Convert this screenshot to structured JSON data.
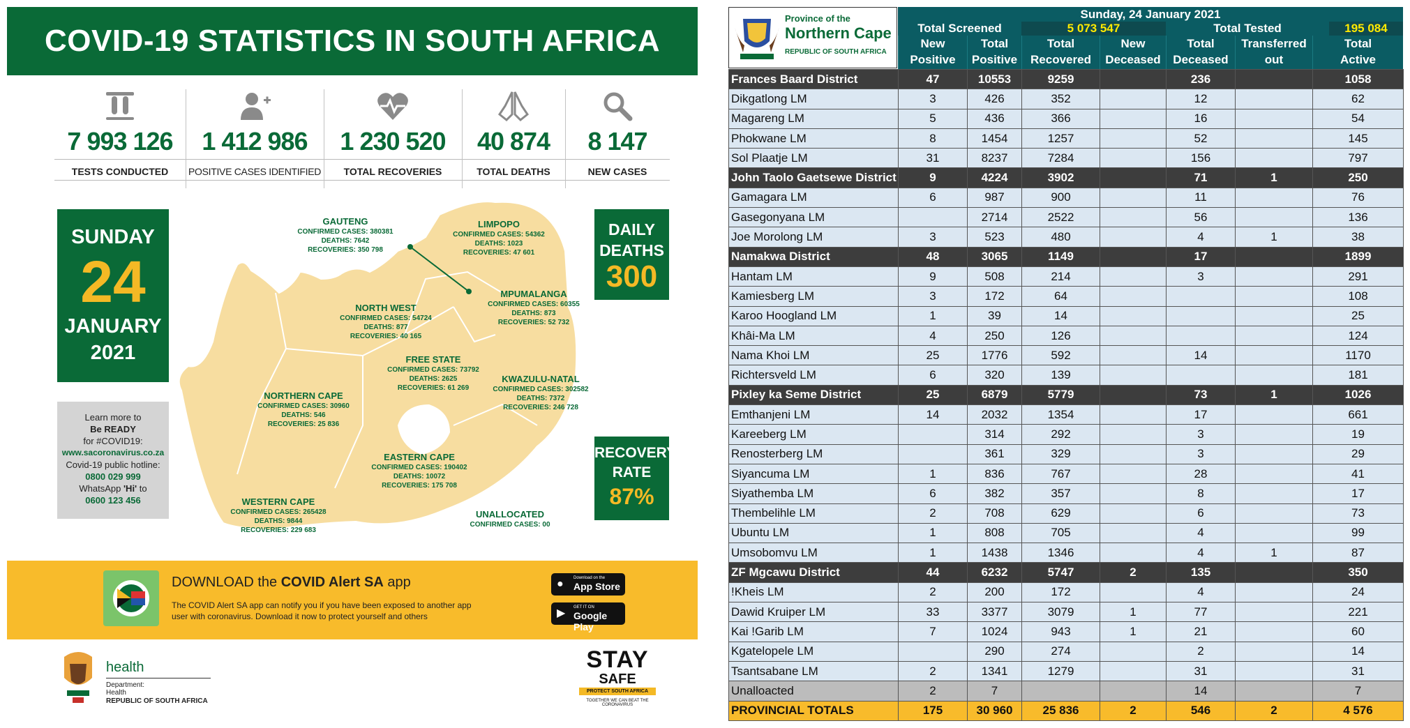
{
  "infographic": {
    "title": "COVID-19 STATISTICS IN SOUTH AFRICA",
    "stats": [
      {
        "icon": "test-tubes-icon",
        "value": "7 993 126",
        "label": "TESTS CONDUCTED"
      },
      {
        "icon": "add-person-icon",
        "value": "1 412 986",
        "label": "POSITIVE CASES IDENTIFIED"
      },
      {
        "icon": "heartbeat-icon",
        "value": "1 230 520",
        "label": "TOTAL RECOVERIES"
      },
      {
        "icon": "praying-hands-icon",
        "value": "40 874",
        "label": "TOTAL DEATHS"
      },
      {
        "icon": "search-icon",
        "value": "8 147",
        "label": "NEW CASES"
      }
    ],
    "date": {
      "weekday": "SUNDAY",
      "day": "24",
      "month": "JANUARY",
      "year": "2021"
    },
    "learn": {
      "l1": "Learn more to",
      "l2": "Be READY",
      "l3": "for #COVID19:",
      "site": "www.sacoronavirus.co.za",
      "l4": "Covid-19 public hotline:",
      "hotline": "0800 029 999",
      "l5a": "WhatsApp ",
      "l5b": "'Hi'",
      "l5c": " to",
      "whatsapp": "0600 123 456"
    },
    "daily_deaths": {
      "label1": "DAILY",
      "label2": "DEATHS",
      "value": "300"
    },
    "recovery_rate": {
      "label1": "RECOVERY",
      "label2": "RATE",
      "value": "87%"
    },
    "provinces": [
      {
        "name": "GAUTENG",
        "cases": "CONFIRMED CASES: 380381",
        "deaths": "DEATHS: 7642",
        "recoveries": "RECOVERIES: 350 798"
      },
      {
        "name": "LIMPOPO",
        "cases": "CONFIRMED CASES: 54362",
        "deaths": "DEATHS: 1023",
        "recoveries": "RECOVERIES: 47 601"
      },
      {
        "name": "NORTH WEST",
        "cases": "CONFIRMED CASES: 54724",
        "deaths": "DEATHS: 877",
        "recoveries": "RECOVERIES: 40 165"
      },
      {
        "name": "MPUMALANGA",
        "cases": "CONFIRMED CASES: 60355",
        "deaths": "DEATHS: 873",
        "recoveries": "RECOVERIES: 52 732"
      },
      {
        "name": "FREE STATE",
        "cases": "CONFIRMED CASES: 73792",
        "deaths": "DEATHS: 2625",
        "recoveries": "RECOVERIES: 61 269"
      },
      {
        "name": "KWAZULU-NATAL",
        "cases": "CONFIRMED CASES: 302582",
        "deaths": "DEATHS: 7372",
        "recoveries": "RECOVERIES: 246 728"
      },
      {
        "name": "NORTHERN CAPE",
        "cases": "CONFIRMED CASES: 30960",
        "deaths": "DEATHS: 546",
        "recoveries": "RECOVERIES: 25 836"
      },
      {
        "name": "EASTERN CAPE",
        "cases": "CONFIRMED CASES: 190402",
        "deaths": "DEATHS: 10072",
        "recoveries": "RECOVERIES: 175 708"
      },
      {
        "name": "WESTERN CAPE",
        "cases": "CONFIRMED CASES: 265428",
        "deaths": "DEATHS: 9844",
        "recoveries": "RECOVERIES: 229 683"
      },
      {
        "name": "UNALLOCATED",
        "cases": "CONFIRMED CASES: 00",
        "deaths": "",
        "recoveries": ""
      }
    ],
    "download": {
      "title_a": "DOWNLOAD the ",
      "title_b": "COVID Alert SA",
      "title_c": " app",
      "text": "The COVID Alert SA app can notify you if you have been exposed to another app user with coronavirus. Download it now to protect yourself and others",
      "appstore_small": "Download on the",
      "appstore": "App Store",
      "googleplay_small": "GET IT ON",
      "googleplay": "Google Play"
    },
    "health": {
      "h1": "health",
      "dept1": "Department:",
      "dept2": "Health",
      "country": "REPUBLIC OF SOUTH AFRICA"
    },
    "staysafe": {
      "w1": "STAY",
      "w2": "SAFE",
      "w3": "PROTECT SOUTH AFRICA",
      "w4": "TOGETHER WE CAN BEAT THE CORONAVIRUS"
    }
  },
  "table": {
    "logo": {
      "l1": "Province of the",
      "l2": "Northern Cape",
      "l3": "REPUBLIC OF SOUTH AFRICA"
    },
    "date": "Sunday, 24 January 2021",
    "total_screened_label": "Total Screened",
    "total_screened": "5 073 547",
    "total_tested_label": "Total Tested",
    "total_tested": "195 084",
    "columns": [
      [
        "New",
        "Positive"
      ],
      [
        "Total",
        "Positive"
      ],
      [
        "Total",
        "Recovered"
      ],
      [
        "New",
        "Deceased"
      ],
      [
        "Total",
        "Deceased"
      ],
      [
        "Transferred",
        "out"
      ],
      [
        "Total",
        "Active"
      ]
    ],
    "rows": [
      {
        "type": "dist",
        "cells": [
          "Frances Baard District",
          "47",
          "10553",
          "9259",
          "",
          "236",
          "",
          "1058"
        ]
      },
      {
        "type": "lm",
        "cells": [
          "Dikgatlong LM",
          "3",
          "426",
          "352",
          "",
          "12",
          "",
          "62"
        ]
      },
      {
        "type": "lm",
        "cells": [
          "Magareng LM",
          "5",
          "436",
          "366",
          "",
          "16",
          "",
          "54"
        ]
      },
      {
        "type": "lm",
        "cells": [
          "Phokwane LM",
          "8",
          "1454",
          "1257",
          "",
          "52",
          "",
          "145"
        ]
      },
      {
        "type": "lm",
        "cells": [
          "Sol Plaatje LM",
          "31",
          "8237",
          "7284",
          "",
          "156",
          "",
          "797"
        ]
      },
      {
        "type": "dist",
        "cells": [
          "John Taolo Gaetsewe District",
          "9",
          "4224",
          "3902",
          "",
          "71",
          "1",
          "250"
        ]
      },
      {
        "type": "lm",
        "cells": [
          "Gamagara LM",
          "6",
          "987",
          "900",
          "",
          "11",
          "",
          "76"
        ]
      },
      {
        "type": "lm",
        "cells": [
          "Gasegonyana LM",
          "",
          "2714",
          "2522",
          "",
          "56",
          "",
          "136"
        ]
      },
      {
        "type": "lm",
        "cells": [
          "Joe Morolong LM",
          "3",
          "523",
          "480",
          "",
          "4",
          "1",
          "38"
        ]
      },
      {
        "type": "dist",
        "cells": [
          "Namakwa District",
          "48",
          "3065",
          "1149",
          "",
          "17",
          "",
          "1899"
        ]
      },
      {
        "type": "lm",
        "cells": [
          "Hantam LM",
          "9",
          "508",
          "214",
          "",
          "3",
          "",
          "291"
        ]
      },
      {
        "type": "lm",
        "cells": [
          "Kamiesberg LM",
          "3",
          "172",
          "64",
          "",
          "",
          "",
          "108"
        ]
      },
      {
        "type": "lm",
        "cells": [
          "Karoo Hoogland LM",
          "1",
          "39",
          "14",
          "",
          "",
          "",
          "25"
        ]
      },
      {
        "type": "lm",
        "cells": [
          "Khâi-Ma LM",
          "4",
          "250",
          "126",
          "",
          "",
          "",
          "124"
        ]
      },
      {
        "type": "lm",
        "cells": [
          "Nama Khoi LM",
          "25",
          "1776",
          "592",
          "",
          "14",
          "",
          "1170"
        ]
      },
      {
        "type": "lm",
        "cells": [
          "Richtersveld LM",
          "6",
          "320",
          "139",
          "",
          "",
          "",
          "181"
        ]
      },
      {
        "type": "dist",
        "cells": [
          "Pixley ka Seme District",
          "25",
          "6879",
          "5779",
          "",
          "73",
          "1",
          "1026"
        ]
      },
      {
        "type": "lm",
        "cells": [
          "Emthanjeni LM",
          "14",
          "2032",
          "1354",
          "",
          "17",
          "",
          "661"
        ]
      },
      {
        "type": "lm",
        "cells": [
          "Kareeberg LM",
          "",
          "314",
          "292",
          "",
          "3",
          "",
          "19"
        ]
      },
      {
        "type": "lm",
        "cells": [
          "Renosterberg LM",
          "",
          "361",
          "329",
          "",
          "3",
          "",
          "29"
        ]
      },
      {
        "type": "lm",
        "cells": [
          "Siyancuma LM",
          "1",
          "836",
          "767",
          "",
          "28",
          "",
          "41"
        ]
      },
      {
        "type": "lm",
        "cells": [
          "Siyathemba LM",
          "6",
          "382",
          "357",
          "",
          "8",
          "",
          "17"
        ]
      },
      {
        "type": "lm",
        "cells": [
          "Thembelihle LM",
          "2",
          "708",
          "629",
          "",
          "6",
          "",
          "73"
        ]
      },
      {
        "type": "lm",
        "cells": [
          "Ubuntu LM",
          "1",
          "808",
          "705",
          "",
          "4",
          "",
          "99"
        ]
      },
      {
        "type": "lm",
        "cells": [
          "Umsobomvu LM",
          "1",
          "1438",
          "1346",
          "",
          "4",
          "1",
          "87"
        ]
      },
      {
        "type": "dist",
        "cells": [
          "ZF Mgcawu District",
          "44",
          "6232",
          "5747",
          "2",
          "135",
          "",
          "350"
        ]
      },
      {
        "type": "lm",
        "cells": [
          "!Kheis LM",
          "2",
          "200",
          "172",
          "",
          "4",
          "",
          "24"
        ]
      },
      {
        "type": "lm",
        "cells": [
          "Dawid Kruiper LM",
          "33",
          "3377",
          "3079",
          "1",
          "77",
          "",
          "221"
        ]
      },
      {
        "type": "lm",
        "cells": [
          "Kai !Garib LM",
          "7",
          "1024",
          "943",
          "1",
          "21",
          "",
          "60"
        ]
      },
      {
        "type": "lm",
        "cells": [
          "Kgatelopele LM",
          "",
          "290",
          "274",
          "",
          "2",
          "",
          "14"
        ]
      },
      {
        "type": "lm",
        "cells": [
          "Tsantsabane LM",
          "2",
          "1341",
          "1279",
          "",
          "31",
          "",
          "31"
        ]
      },
      {
        "type": "unal",
        "cells": [
          "Unalloacted",
          "2",
          "7",
          "",
          "",
          "14",
          "",
          "7"
        ]
      },
      {
        "type": "tot",
        "cells": [
          "PROVINCIAL TOTALS",
          "175",
          "30 960",
          "25 836",
          "2",
          "546",
          "2",
          "4 576"
        ]
      }
    ]
  }
}
